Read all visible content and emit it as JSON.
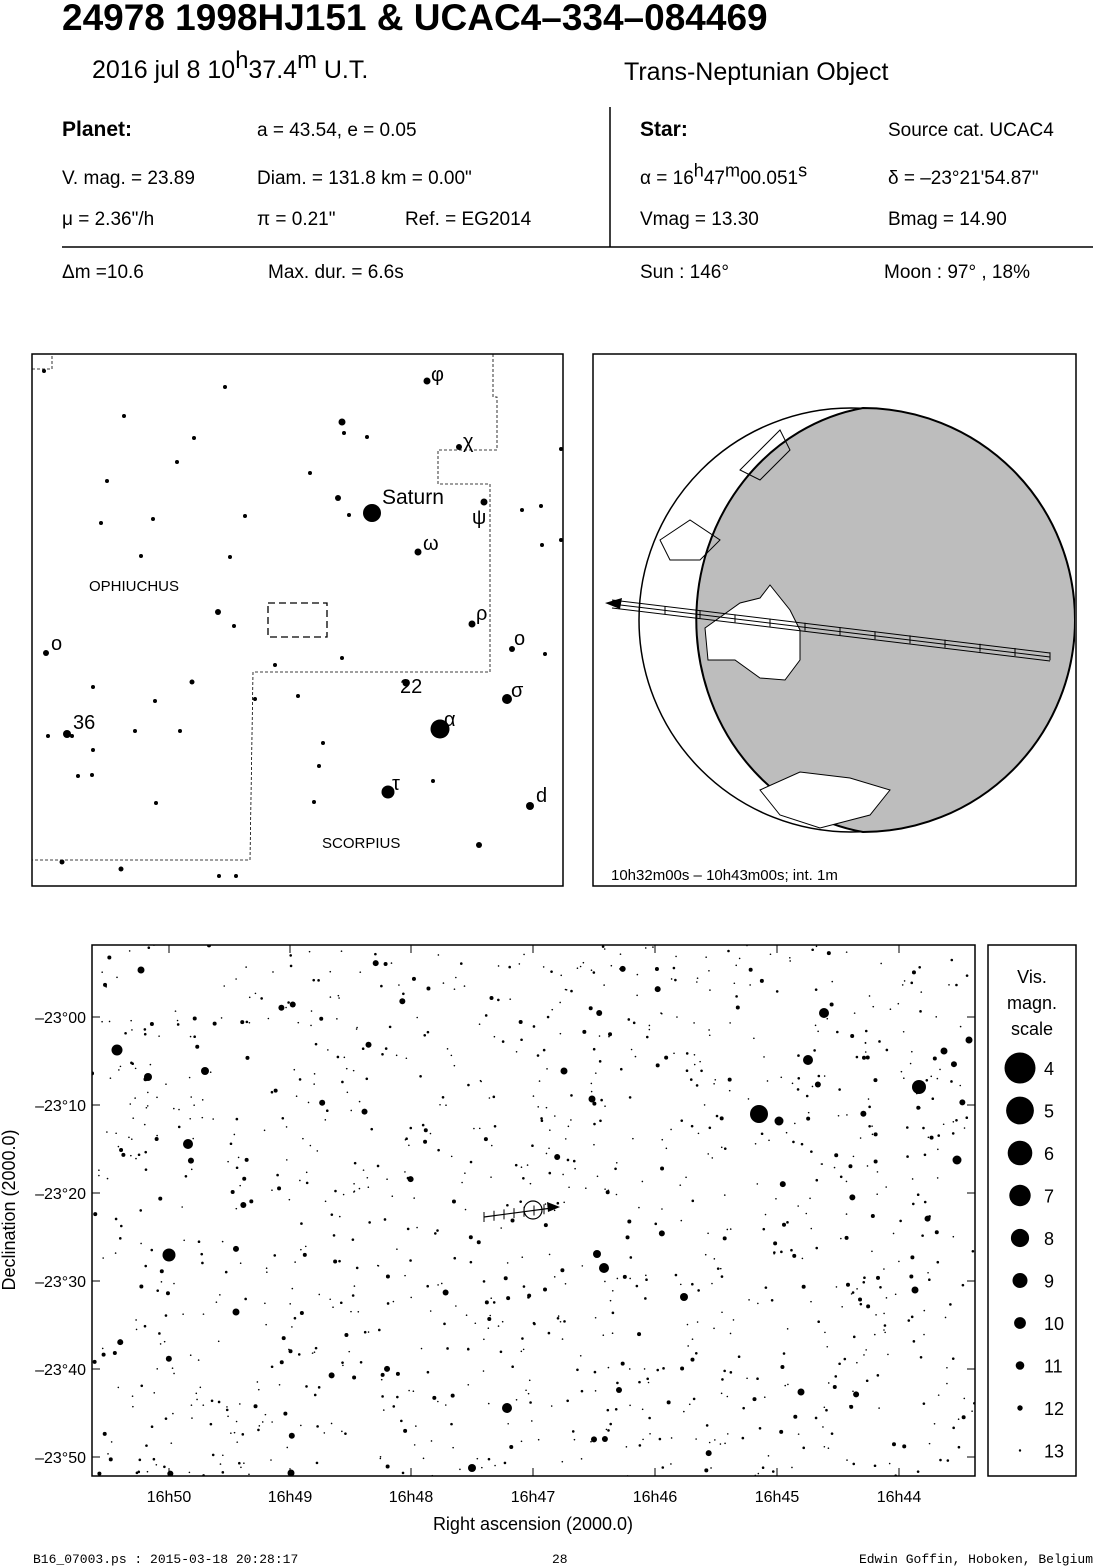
{
  "header": {
    "title": "24978 1998HJ151  &  UCAC4–334–084469",
    "date": [
      "2016 jul  8  10",
      "h",
      "37.4",
      "m",
      " U.T."
    ],
    "object_type": "Trans-Neptunian Object"
  },
  "planet": {
    "label": "Planet:",
    "orbit": "a = 43.54, e = 0.05",
    "vmag": "V. mag. = 23.89",
    "diam": "Diam. = 131.8 km = 0.00\"",
    "mu": "μ =  2.36\"/h",
    "pi": "π =  0.21\"",
    "ref": "Ref. = EG2014"
  },
  "star": {
    "label": "Star:",
    "source": "Source cat.  UCAC4",
    "ra": [
      "α = 16",
      "h",
      "47",
      "m",
      "00.051",
      "s"
    ],
    "dec": "δ = –23°21'54.87\"",
    "vmag": "Vmag = 13.30",
    "bmag": "Bmag = 14.90"
  },
  "summary": {
    "dm": "Δm =10.6",
    "duration": "Max. dur. = 6.6s",
    "sun": "Sun : 146°",
    "moon": "Moon :  97° , 18%"
  },
  "finder": {
    "labels": [
      "φ",
      "χ",
      "Saturn",
      "ψ",
      "ω",
      "OPHIUCHUS",
      "ρ",
      "o",
      "o",
      "22",
      "σ",
      "36",
      "α",
      "τ",
      "d",
      "SCORPIUS"
    ]
  },
  "globe": {
    "caption": "10h32m00s – 10h43m00s; int.  1m"
  },
  "star_chart": {
    "ylabel": "Declination (2000.0)",
    "xlabel": "Right ascension (2000.0)",
    "yticks": [
      "–23°00",
      "–23°10",
      "–23°20",
      "–23°30",
      "–23°40",
      "–23°50"
    ],
    "xticks": [
      "16h50",
      "16h49",
      "16h48",
      "16h47",
      "16h46",
      "16h45",
      "16h44"
    ]
  },
  "legend": {
    "title": [
      "Vis.",
      "magn.",
      "scale"
    ],
    "magnitudes": [
      4,
      5,
      6,
      7,
      8,
      9,
      10,
      11,
      12,
      13
    ]
  },
  "footer": {
    "file": "B16_07003.ps : 2015-03-18 20:28:17",
    "page": "28",
    "author": "Edwin Goffin, Hoboken, Belgium"
  }
}
